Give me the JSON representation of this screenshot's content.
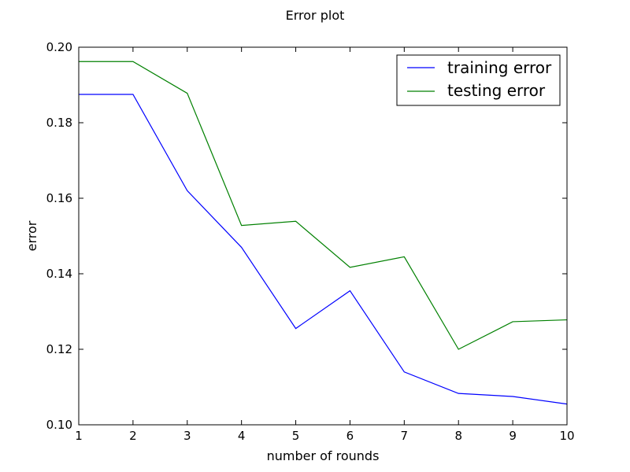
{
  "chart_data": {
    "type": "line",
    "title": "Error plot",
    "xlabel": "number of rounds",
    "ylabel": "error",
    "xlim": [
      1,
      10
    ],
    "ylim": [
      0.1,
      0.2
    ],
    "xticks": [
      1,
      2,
      3,
      4,
      5,
      6,
      7,
      8,
      9,
      10
    ],
    "xtick_labels": [
      "1",
      "2",
      "3",
      "4",
      "5",
      "6",
      "7",
      "8",
      "9",
      "10"
    ],
    "yticks": [
      0.1,
      0.12,
      0.14,
      0.16,
      0.18,
      0.2
    ],
    "ytick_labels": [
      "0.10",
      "0.12",
      "0.14",
      "0.16",
      "0.18",
      "0.20"
    ],
    "grid": false,
    "legend_position": "top-right",
    "x": [
      1,
      2,
      3,
      4,
      5,
      6,
      7,
      8,
      9,
      10
    ],
    "series": [
      {
        "name": "training error",
        "color": "#0000ff",
        "values": [
          0.1875,
          0.1875,
          0.162,
          0.147,
          0.1255,
          0.1355,
          0.114,
          0.1083,
          0.1075,
          0.1055
        ]
      },
      {
        "name": "testing error",
        "color": "#008000",
        "values": [
          0.1962,
          0.1962,
          0.1878,
          0.1528,
          0.1539,
          0.1417,
          0.1445,
          0.12,
          0.1273,
          0.1278
        ]
      }
    ]
  }
}
